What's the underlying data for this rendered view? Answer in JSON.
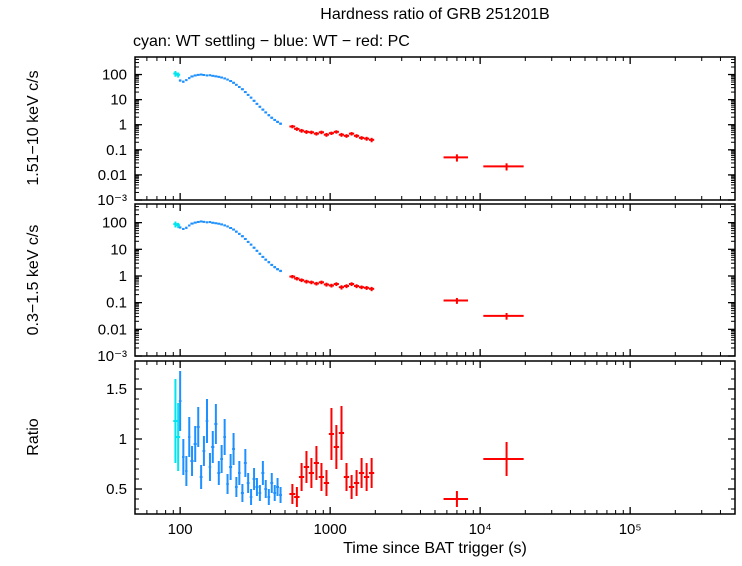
{
  "page": {
    "title": "Hardness ratio of GRB 251201B",
    "subtitle": "cyan: WT settling − blue: WT − red: PC",
    "xlabel": "Time since BAT trigger (s)"
  },
  "colors": {
    "cyan": "#00e5ee",
    "blue": "#1e90ff",
    "red": "#ff0000",
    "axis": "#000000",
    "background": "#ffffff"
  },
  "xaxis": {
    "scale": "log",
    "lim": [
      50,
      500000
    ],
    "ticks": [
      100,
      1000,
      10000,
      100000
    ],
    "tick_labels": [
      "100",
      "1000",
      "10⁴",
      "10⁵"
    ]
  },
  "chart_data": [
    {
      "type": "scatter",
      "panel_id": "hard",
      "ylabel": "1.51−10 keV c/s",
      "yscale": "log",
      "ylim": [
        0.001,
        500
      ],
      "yticks": [
        100,
        10,
        1,
        0.1,
        0.01,
        0.001
      ],
      "ytick_labels": [
        "100",
        "10",
        "1",
        "0.1",
        "0.01",
        "10⁻³"
      ],
      "series": [
        {
          "name": "WT settling",
          "color": "cyan",
          "points": [
            [
              93,
              110,
              3,
              28
            ],
            [
              97,
              98,
              3,
              22
            ]
          ]
        },
        {
          "name": "WT",
          "color": "blue",
          "points": [
            [
              100,
              58,
              2,
              6
            ],
            [
              105,
              52,
              2,
              5
            ],
            [
              110,
              60,
              2,
              5
            ],
            [
              115,
              72,
              2,
              6
            ],
            [
              120,
              84,
              3,
              6
            ],
            [
              126,
              92,
              3,
              7
            ],
            [
              132,
              97,
              3,
              7
            ],
            [
              138,
              100,
              3,
              7
            ],
            [
              144,
              96,
              3,
              7
            ],
            [
              151,
              92,
              3,
              6
            ],
            [
              158,
              94,
              3,
              6
            ],
            [
              165,
              89,
              4,
              6
            ],
            [
              173,
              85,
              4,
              6
            ],
            [
              181,
              81,
              4,
              6
            ],
            [
              189,
              76,
              4,
              5
            ],
            [
              198,
              70,
              4,
              5
            ],
            [
              207,
              63,
              4,
              5
            ],
            [
              217,
              55,
              5,
              4
            ],
            [
              227,
              47,
              5,
              4
            ],
            [
              237,
              39,
              5,
              3
            ],
            [
              248,
              32,
              5,
              2.7
            ],
            [
              260,
              26,
              6,
              2.2
            ],
            [
              272,
              20,
              6,
              1.7
            ],
            [
              284,
              15.5,
              6,
              1.3
            ],
            [
              297,
              12,
              6,
              1
            ],
            [
              311,
              9,
              7,
              0.8
            ],
            [
              325,
              6.8,
              7,
              0.6
            ],
            [
              340,
              5.2,
              7,
              0.45
            ],
            [
              356,
              4,
              8,
              0.35
            ],
            [
              372,
              3.1,
              8,
              0.28
            ],
            [
              390,
              2.4,
              8,
              0.22
            ],
            [
              408,
              1.9,
              9,
              0.18
            ],
            [
              427,
              1.55,
              9,
              0.15
            ],
            [
              446,
              1.3,
              10,
              0.13
            ],
            [
              467,
              1.1,
              10,
              0.11
            ]
          ]
        },
        {
          "name": "PC",
          "color": "red",
          "points": [
            [
              560,
              0.85,
              25,
              0.13
            ],
            [
              600,
              0.68,
              25,
              0.11
            ],
            [
              645,
              0.58,
              26,
              0.1
            ],
            [
              695,
              0.52,
              28,
              0.09
            ],
            [
              750,
              0.5,
              30,
              0.08
            ],
            [
              810,
              0.44,
              32,
              0.07
            ],
            [
              875,
              0.5,
              35,
              0.08
            ],
            [
              945,
              0.4,
              38,
              0.07
            ],
            [
              1020,
              0.46,
              40,
              0.07
            ],
            [
              1100,
              0.52,
              44,
              0.08
            ],
            [
              1190,
              0.4,
              48,
              0.07
            ],
            [
              1285,
              0.36,
              52,
              0.06
            ],
            [
              1390,
              0.44,
              56,
              0.07
            ],
            [
              1500,
              0.36,
              60,
              0.06
            ],
            [
              1620,
              0.3,
              65,
              0.05
            ],
            [
              1750,
              0.28,
              70,
              0.05
            ],
            [
              1890,
              0.25,
              76,
              0.05
            ],
            [
              7000,
              0.05,
              1300,
              0.016
            ],
            [
              15000,
              0.022,
              4500,
              0.007
            ]
          ]
        }
      ]
    },
    {
      "type": "scatter",
      "panel_id": "soft",
      "ylabel": "0.3−1.5 keV c/s",
      "yscale": "log",
      "ylim": [
        0.001,
        500
      ],
      "yticks": [
        100,
        10,
        1,
        0.1,
        0.01,
        0.001
      ],
      "ytick_labels": [
        "100",
        "10",
        "1",
        "0.1",
        "0.01",
        "10⁻³"
      ],
      "series": [
        {
          "name": "WT settling",
          "color": "cyan",
          "points": [
            [
              93,
              88,
              3,
              22
            ],
            [
              97,
              80,
              3,
              18
            ]
          ]
        },
        {
          "name": "WT",
          "color": "blue",
          "points": [
            [
              100,
              66,
              2,
              6
            ],
            [
              105,
              58,
              2,
              5
            ],
            [
              110,
              64,
              2,
              6
            ],
            [
              115,
              78,
              2,
              6
            ],
            [
              120,
              92,
              3,
              7
            ],
            [
              126,
              100,
              3,
              7
            ],
            [
              132,
              106,
              3,
              7
            ],
            [
              138,
              111,
              3,
              8
            ],
            [
              144,
              107,
              3,
              7
            ],
            [
              151,
              103,
              3,
              7
            ],
            [
              158,
              105,
              3,
              7
            ],
            [
              165,
              99,
              4,
              7
            ],
            [
              173,
              95,
              4,
              6
            ],
            [
              181,
              91,
              4,
              6
            ],
            [
              189,
              86,
              4,
              6
            ],
            [
              198,
              79,
              4,
              5
            ],
            [
              207,
              72,
              4,
              5
            ],
            [
              217,
              63,
              5,
              5
            ],
            [
              227,
              55,
              5,
              4
            ],
            [
              237,
              46,
              5,
              4
            ],
            [
              248,
              38,
              5,
              3
            ],
            [
              260,
              31,
              6,
              2.6
            ],
            [
              272,
              24.5,
              6,
              2
            ],
            [
              284,
              19,
              6,
              1.6
            ],
            [
              297,
              15,
              6,
              1.25
            ],
            [
              311,
              11.5,
              7,
              0.95
            ],
            [
              325,
              8.8,
              7,
              0.75
            ],
            [
              340,
              6.8,
              7,
              0.6
            ],
            [
              356,
              5.2,
              8,
              0.45
            ],
            [
              372,
              4.1,
              8,
              0.36
            ],
            [
              390,
              3.3,
              8,
              0.3
            ],
            [
              408,
              2.6,
              9,
              0.24
            ],
            [
              427,
              2.15,
              9,
              0.2
            ],
            [
              446,
              1.8,
              10,
              0.17
            ],
            [
              467,
              1.55,
              10,
              0.15
            ]
          ]
        },
        {
          "name": "PC",
          "color": "red",
          "points": [
            [
              560,
              0.95,
              25,
              0.14
            ],
            [
              600,
              0.8,
              25,
              0.12
            ],
            [
              645,
              0.7,
              26,
              0.11
            ],
            [
              695,
              0.62,
              28,
              0.1
            ],
            [
              750,
              0.58,
              30,
              0.09
            ],
            [
              810,
              0.52,
              32,
              0.08
            ],
            [
              875,
              0.58,
              35,
              0.09
            ],
            [
              945,
              0.48,
              38,
              0.08
            ],
            [
              1020,
              0.44,
              40,
              0.07
            ],
            [
              1100,
              0.5,
              44,
              0.08
            ],
            [
              1190,
              0.38,
              48,
              0.07
            ],
            [
              1285,
              0.42,
              52,
              0.07
            ],
            [
              1390,
              0.5,
              56,
              0.08
            ],
            [
              1500,
              0.42,
              60,
              0.07
            ],
            [
              1620,
              0.38,
              65,
              0.06
            ],
            [
              1750,
              0.36,
              70,
              0.06
            ],
            [
              1890,
              0.33,
              76,
              0.06
            ],
            [
              7000,
              0.12,
              1300,
              0.03
            ],
            [
              15000,
              0.032,
              4500,
              0.009
            ]
          ]
        }
      ]
    },
    {
      "type": "scatter",
      "panel_id": "ratio",
      "ylabel": "Ratio",
      "yscale": "linear",
      "ylim": [
        0.25,
        1.78
      ],
      "yticks": [
        0.5,
        1,
        1.5
      ],
      "ytick_labels": [
        "0.5",
        "1",
        "1.5"
      ],
      "series": [
        {
          "name": "WT settling",
          "color": "cyan",
          "points": [
            [
              93,
              1.18,
              3,
              0.42
            ],
            [
              97,
              1.02,
              3,
              0.34
            ]
          ]
        },
        {
          "name": "WT",
          "color": "blue",
          "points": [
            [
              100,
              1.38,
              2,
              0.3
            ],
            [
              105,
              0.82,
              2,
              0.18
            ],
            [
              110,
              0.68,
              2,
              0.15
            ],
            [
              115,
              1.02,
              2,
              0.2
            ],
            [
              120,
              0.78,
              3,
              0.15
            ],
            [
              126,
              0.95,
              3,
              0.18
            ],
            [
              132,
              1.12,
              3,
              0.2
            ],
            [
              138,
              0.62,
              3,
              0.12
            ],
            [
              144,
              0.88,
              3,
              0.15
            ],
            [
              151,
              1.18,
              3,
              0.22
            ],
            [
              158,
              0.72,
              3,
              0.14
            ],
            [
              165,
              0.92,
              4,
              0.16
            ],
            [
              173,
              1.15,
              4,
              0.2
            ],
            [
              181,
              0.66,
              4,
              0.12
            ],
            [
              189,
              0.8,
              4,
              0.14
            ],
            [
              198,
              1.02,
              4,
              0.18
            ],
            [
              207,
              0.55,
              4,
              0.1
            ],
            [
              217,
              0.72,
              5,
              0.13
            ],
            [
              227,
              0.9,
              5,
              0.16
            ],
            [
              237,
              0.52,
              5,
              0.1
            ],
            [
              248,
              0.66,
              5,
              0.12
            ],
            [
              260,
              0.46,
              6,
              0.09
            ],
            [
              272,
              0.76,
              6,
              0.14
            ],
            [
              284,
              0.56,
              6,
              0.1
            ],
            [
              297,
              0.42,
              6,
              0.08
            ],
            [
              311,
              0.6,
              7,
              0.11
            ],
            [
              325,
              0.52,
              7,
              0.09
            ],
            [
              340,
              0.46,
              7,
              0.08
            ],
            [
              356,
              0.66,
              8,
              0.12
            ],
            [
              372,
              0.5,
              8,
              0.09
            ],
            [
              390,
              0.42,
              8,
              0.08
            ],
            [
              408,
              0.56,
              9,
              0.1
            ],
            [
              427,
              0.46,
              9,
              0.08
            ],
            [
              446,
              0.52,
              10,
              0.09
            ],
            [
              467,
              0.44,
              10,
              0.08
            ]
          ]
        },
        {
          "name": "PC",
          "color": "red",
          "points": [
            [
              560,
              0.45,
              25,
              0.1
            ],
            [
              600,
              0.42,
              25,
              0.1
            ],
            [
              645,
              0.62,
              26,
              0.14
            ],
            [
              695,
              0.72,
              28,
              0.16
            ],
            [
              750,
              0.66,
              30,
              0.15
            ],
            [
              810,
              0.76,
              32,
              0.17
            ],
            [
              875,
              0.62,
              35,
              0.14
            ],
            [
              945,
              0.56,
              38,
              0.13
            ],
            [
              1020,
              1.05,
              40,
              0.26
            ],
            [
              1100,
              0.92,
              44,
              0.22
            ],
            [
              1190,
              1.06,
              48,
              0.27
            ],
            [
              1285,
              0.62,
              52,
              0.14
            ],
            [
              1390,
              0.52,
              56,
              0.12
            ],
            [
              1500,
              0.56,
              60,
              0.13
            ],
            [
              1620,
              0.66,
              65,
              0.15
            ],
            [
              1750,
              0.62,
              70,
              0.14
            ],
            [
              1890,
              0.66,
              76,
              0.15
            ],
            [
              7000,
              0.4,
              1300,
              0.08
            ],
            [
              15000,
              0.8,
              4500,
              0.17
            ]
          ]
        }
      ]
    }
  ]
}
